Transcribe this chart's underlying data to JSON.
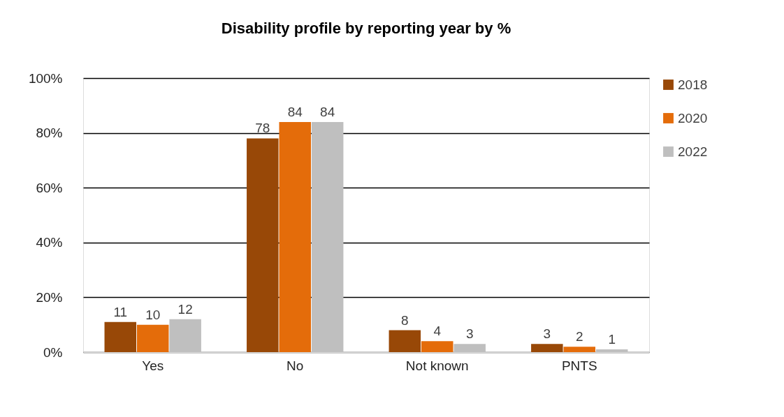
{
  "chart_data": {
    "type": "bar",
    "title": "Disability profile by reporting year by %",
    "categories": [
      "Yes",
      "No",
      "Not known",
      "PNTS"
    ],
    "series": [
      {
        "name": "2018",
        "color": "#984807",
        "values": [
          11,
          78,
          8,
          3
        ]
      },
      {
        "name": "2020",
        "color": "#e46c0a",
        "values": [
          10,
          84,
          4,
          2
        ]
      },
      {
        "name": "2022",
        "color": "#bfbfbf",
        "values": [
          12,
          84,
          3,
          1
        ]
      }
    ],
    "ylim": [
      0,
      100
    ],
    "yticks": [
      {
        "value": 0,
        "label": "0%"
      },
      {
        "value": 20,
        "label": "20%"
      },
      {
        "value": 40,
        "label": "40%"
      },
      {
        "value": 60,
        "label": "60%"
      },
      {
        "value": 80,
        "label": "80%"
      },
      {
        "value": 100,
        "label": "100%"
      }
    ],
    "grid": "y",
    "legend": "right",
    "data_labels": true
  }
}
